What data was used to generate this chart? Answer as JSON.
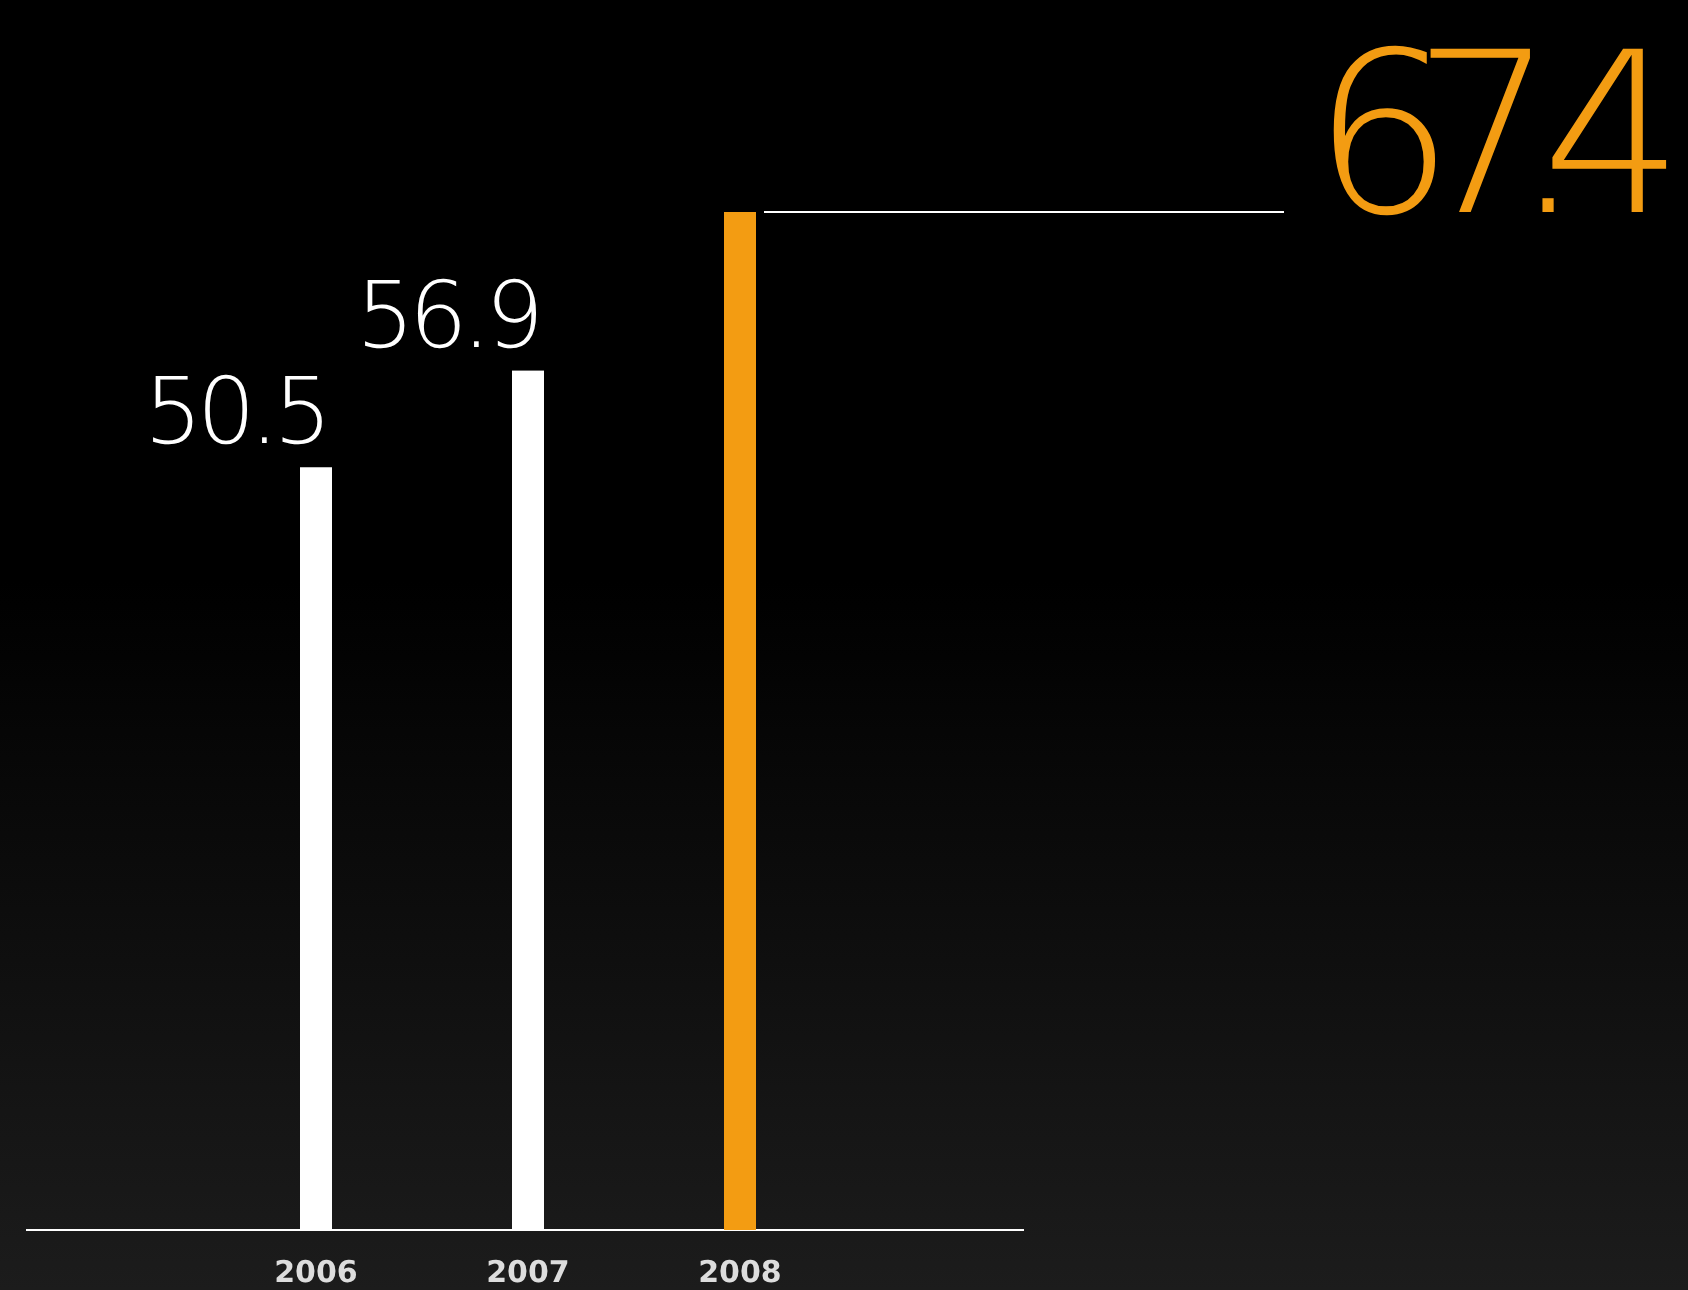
{
  "chart_data": {
    "type": "bar",
    "categories": [
      "2006",
      "2007",
      "2008"
    ],
    "values": [
      50.5,
      56.9,
      67.4
    ],
    "colors": [
      "#ffffff",
      "#ffffff",
      "#f39c12"
    ],
    "data_labels": true
  }
}
